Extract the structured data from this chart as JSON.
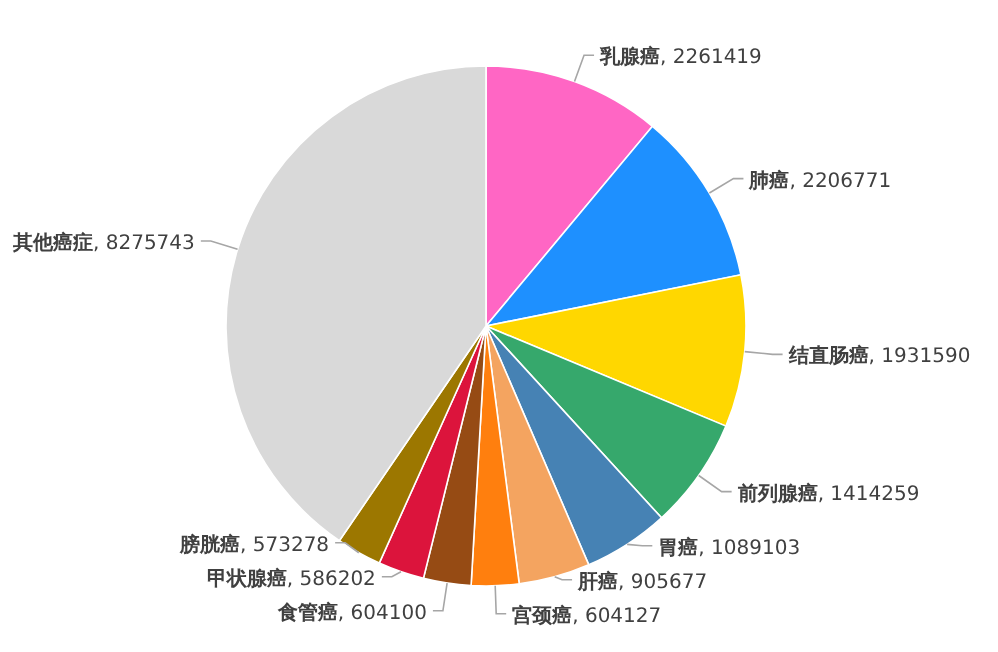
{
  "chart_data": {
    "type": "pie",
    "categories": [
      "乳腺癌",
      "肺癌",
      "结直肠癌",
      "前列腺癌",
      "胃癌",
      "肝癌",
      "宫颈癌",
      "食管癌",
      "甲状腺癌",
      "膀胱癌",
      "其他癌症"
    ],
    "values": [
      2261419,
      2206771,
      1931590,
      1414259,
      1089103,
      905677,
      604127,
      604100,
      586202,
      573278,
      8275743
    ],
    "value_labels": [
      ", 2261419",
      ", 2206771",
      ", 1931590",
      ", 1414259",
      ", 1089103",
      ", 905677",
      ", 604127",
      ", 604100",
      ", 586202",
      ", 573278",
      ", 8275743"
    ],
    "colors": [
      "#ff66c4",
      "#1e90ff",
      "#ffd700",
      "#36a86c",
      "#4682b4",
      "#f4a460",
      "#ff7f0e",
      "#964b14",
      "#dc143c",
      "#9c7700",
      "#d9d9d9"
    ]
  }
}
